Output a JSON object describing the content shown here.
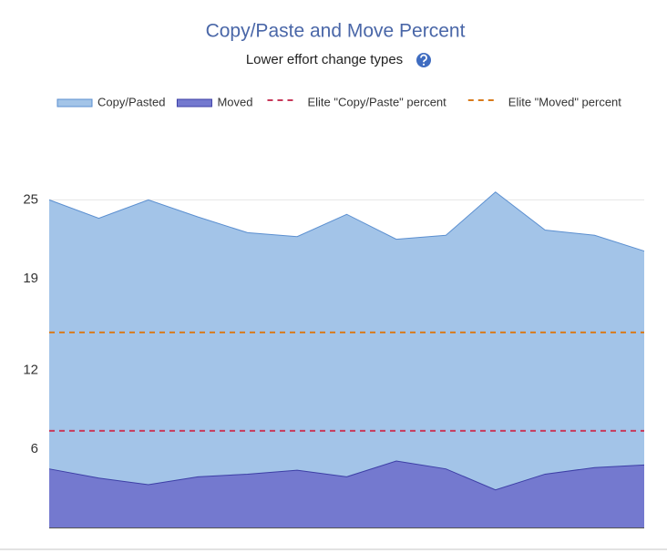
{
  "chart_data": {
    "type": "area",
    "title": "Copy/Paste and Move Percent",
    "subtitle": "Lower effort change types",
    "categories": [
      null,
      null,
      null,
      null,
      null,
      null,
      null,
      null,
      null,
      null,
      null,
      null,
      null
    ],
    "series": [
      {
        "name": "Copy/Pasted",
        "color": "#a3c4e8",
        "line_color": "#5b8fd0",
        "values": [
          25.0,
          23.6,
          25.0,
          23.7,
          22.5,
          22.2,
          23.9,
          22.0,
          22.3,
          25.6,
          22.7,
          22.3,
          21.1
        ]
      },
      {
        "name": "Moved",
        "color": "#7479cf",
        "line_color": "#3d3fa6",
        "values": [
          4.5,
          3.8,
          3.3,
          3.9,
          4.1,
          4.4,
          3.9,
          5.1,
          4.5,
          2.9,
          4.1,
          4.6,
          4.8
        ]
      }
    ],
    "reference_lines": [
      {
        "name": "Elite \"Copy/Paste\" percent",
        "color": "#c8385a",
        "value": 7.4
      },
      {
        "name": "Elite \"Moved\" percent",
        "color": "#d97a1a",
        "value": 14.9
      }
    ],
    "ylim": [
      0,
      26
    ],
    "yticks": [
      6,
      12,
      19,
      25
    ],
    "grid": true
  }
}
